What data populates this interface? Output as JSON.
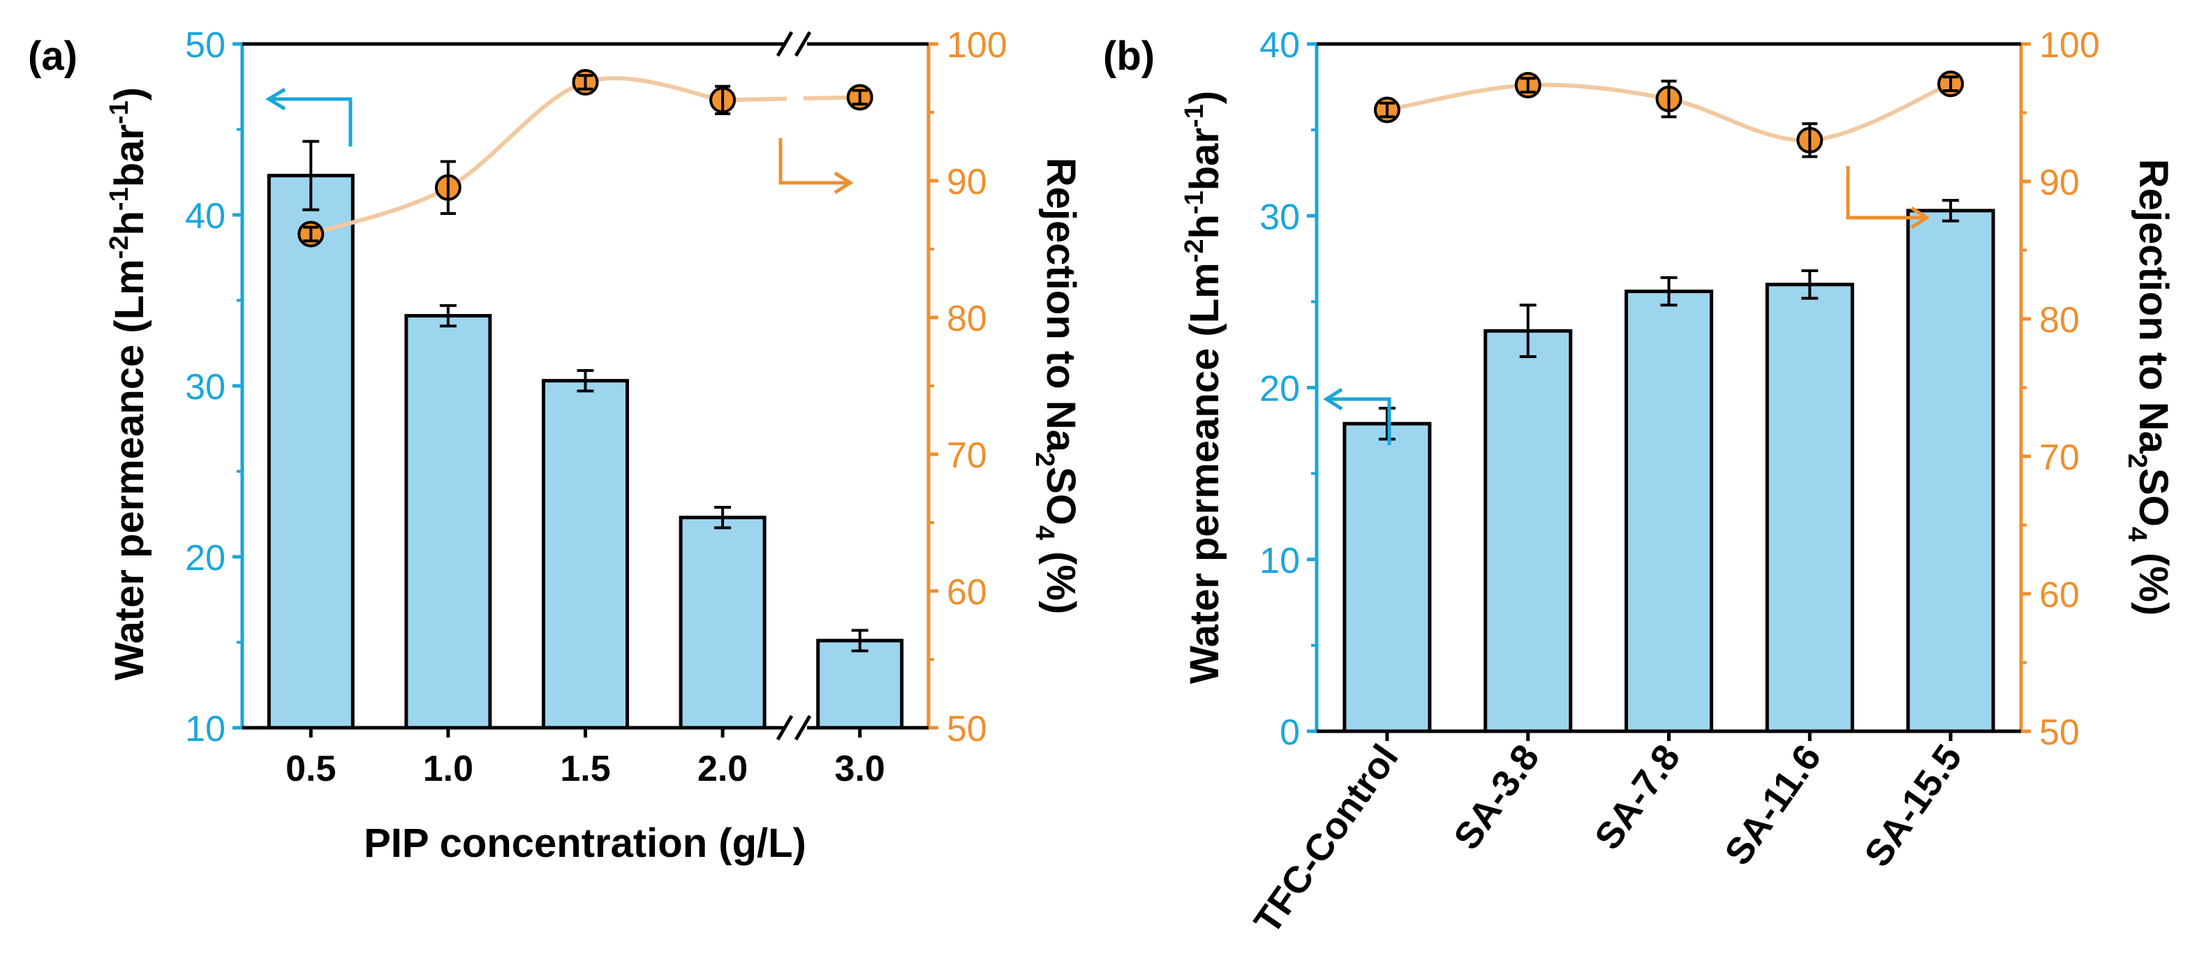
{
  "colors": {
    "bar_fill": "#9dd5ef",
    "bar_stroke": "#000000",
    "left_axis": "#1aa6db",
    "right_axis": "#ef8f2f",
    "marker_fill": "#f2932f",
    "trend_line": "#f2c9a0"
  },
  "chart_data": [
    {
      "panel_label": "(a)",
      "type": "bar",
      "overlay_type": "line",
      "title": "",
      "xlabel": "PIP concentration (g/L)",
      "ylabel": "Water permeance (Lm⁻²h⁻¹bar⁻¹)",
      "ylabel_parts": {
        "base": "Water permeance (Lm",
        "sup1": "-2",
        "mid1": "h",
        "sup2": "-1",
        "mid2": "bar",
        "sup3": "-1",
        "end": ")"
      },
      "y2label": "Rejection to Na₂SO₄ (%)",
      "y2label_parts": {
        "base": "Rejection to Na",
        "sub1": "2",
        "mid": "SO",
        "sub2": "4",
        "end": " (%)"
      },
      "categories": [
        "0.5",
        "1.0",
        "1.5",
        "2.0",
        "3.0"
      ],
      "axis_break_before_index": 4,
      "ylim": [
        10,
        50
      ],
      "yticks": [
        "10",
        "20",
        "30",
        "40",
        "50"
      ],
      "y2lim": [
        50,
        100
      ],
      "y2ticks": [
        "50",
        "60",
        "70",
        "80",
        "90",
        "100"
      ],
      "series": [
        {
          "name": "Water permeance",
          "axis": "left",
          "values": [
            42.3,
            34.1,
            30.3,
            22.3,
            15.1
          ],
          "errors": [
            2.0,
            0.6,
            0.6,
            0.6,
            0.6
          ]
        },
        {
          "name": "Rejection to Na2SO4",
          "axis": "right",
          "values": [
            86.1,
            89.5,
            97.2,
            95.9,
            96.1
          ],
          "errors": [
            0.5,
            1.9,
            0.5,
            1.0,
            0.5
          ]
        }
      ]
    },
    {
      "panel_label": "(b)",
      "type": "bar",
      "overlay_type": "line",
      "title": "",
      "xlabel": "",
      "ylabel": "Water permeance (Lm⁻²h⁻¹bar⁻¹)",
      "ylabel_parts": {
        "base": "Water permeance (Lm",
        "sup1": "-2",
        "mid1": "h",
        "sup2": "-1",
        "mid2": "bar",
        "sup3": "-1",
        "end": ")"
      },
      "y2label": "Rejection to Na₂SO₄ (%)",
      "y2label_parts": {
        "base": "Rejection to Na",
        "sub1": "2",
        "mid": "SO",
        "sub2": "4",
        "end": " (%)"
      },
      "categories": [
        "TFC-Control",
        "SA-3.8",
        "SA-7.8",
        "SA-11.6",
        "SA-15.5"
      ],
      "axis_break_before_index": null,
      "ylim": [
        0,
        40
      ],
      "yticks": [
        "0",
        "10",
        "20",
        "30",
        "40"
      ],
      "y2lim": [
        50,
        100
      ],
      "y2ticks": [
        "50",
        "60",
        "70",
        "80",
        "90",
        "100"
      ],
      "series": [
        {
          "name": "Water permeance",
          "axis": "left",
          "values": [
            17.9,
            23.3,
            25.6,
            26.0,
            30.3
          ],
          "errors": [
            0.9,
            1.5,
            0.8,
            0.8,
            0.6
          ]
        },
        {
          "name": "Rejection to Na2SO4",
          "axis": "right",
          "values": [
            95.2,
            97.0,
            96.0,
            93.0,
            97.1
          ],
          "errors": [
            0.5,
            0.5,
            1.3,
            1.2,
            0.5
          ]
        }
      ]
    }
  ]
}
